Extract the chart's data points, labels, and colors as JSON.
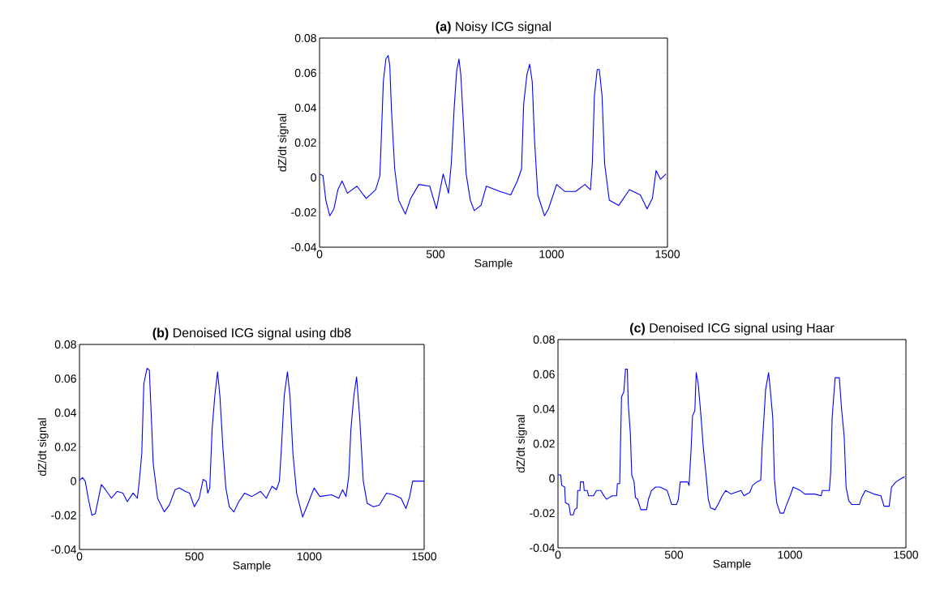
{
  "chart_data": [
    {
      "type": "line",
      "title": "**(a)** Noisy ICG signal",
      "xlabel": "Sample",
      "ylabel": "dZ/dt signal",
      "color": "#0000ff",
      "xlim": [
        0,
        1500
      ],
      "ylim": [
        -0.04,
        0.08
      ],
      "xticks": [
        0,
        500,
        1000,
        1500
      ],
      "yticks": [
        -0.04,
        -0.02,
        0,
        0.02,
        0.04,
        0.06,
        0.08
      ],
      "x": [
        0,
        15,
        27,
        44,
        62,
        79,
        97,
        120,
        161,
        201,
        242,
        260,
        265,
        275,
        286,
        296,
        303,
        310,
        324,
        341,
        370,
        393,
        428,
        475,
        504,
        533,
        556,
        568,
        580,
        591,
        601,
        609,
        620,
        632,
        650,
        667,
        696,
        719,
        778,
        824,
        853,
        871,
        880,
        894,
        906,
        917,
        927,
        941,
        970,
        987,
        1022,
        1057,
        1104,
        1144,
        1168,
        1176,
        1185,
        1197,
        1206,
        1218,
        1229,
        1249,
        1290,
        1336,
        1383,
        1412,
        1435,
        1451,
        1470,
        1494
      ],
      "values": [
        0.002,
        0.001,
        -0.013,
        -0.022,
        -0.018,
        -0.007,
        -0.002,
        -0.009,
        -0.005,
        -0.012,
        -0.007,
        0.001,
        0.018,
        0.055,
        0.068,
        0.07,
        0.064,
        0.039,
        0.005,
        -0.013,
        -0.021,
        -0.012,
        -0.004,
        -0.005,
        -0.018,
        0.002,
        -0.009,
        0.008,
        0.039,
        0.061,
        0.068,
        0.059,
        0.032,
        0.002,
        -0.013,
        -0.019,
        -0.016,
        -0.005,
        -0.008,
        -0.01,
        -0.002,
        0.005,
        0.042,
        0.059,
        0.065,
        0.055,
        0.021,
        -0.01,
        -0.022,
        -0.018,
        -0.004,
        -0.008,
        -0.008,
        -0.004,
        -0.007,
        0.008,
        0.047,
        0.062,
        0.062,
        0.047,
        0.008,
        -0.013,
        -0.016,
        -0.007,
        -0.01,
        -0.018,
        -0.012,
        0.004,
        -0.001,
        0.002
      ]
    },
    {
      "type": "line",
      "title": "**(b)** Denoised ICG signal using db8",
      "xlabel": "Sample",
      "ylabel": "dZ/dt signal",
      "color": "#0000ff",
      "xlim": [
        0,
        1500
      ],
      "ylim": [
        -0.04,
        0.08
      ],
      "xticks": [
        0,
        500,
        1000,
        1500
      ],
      "yticks": [
        -0.04,
        -0.02,
        0,
        0.02,
        0.04,
        0.06,
        0.08
      ],
      "x": [
        0,
        13,
        25,
        38,
        54,
        69,
        95,
        113,
        139,
        164,
        189,
        208,
        233,
        252,
        261,
        271,
        280,
        294,
        304,
        311,
        321,
        340,
        369,
        391,
        416,
        435,
        460,
        479,
        500,
        521,
        538,
        551,
        558,
        567,
        577,
        589,
        601,
        611,
        624,
        637,
        652,
        672,
        693,
        719,
        750,
        788,
        813,
        838,
        857,
        870,
        879,
        891,
        905,
        916,
        929,
        945,
        971,
        992,
        1021,
        1046,
        1097,
        1128,
        1145,
        1160,
        1172,
        1181,
        1194,
        1206,
        1219,
        1235,
        1252,
        1279,
        1305,
        1336,
        1368,
        1399,
        1421,
        1437,
        1450,
        1468,
        1500
      ],
      "values": [
        0.0005,
        0.002,
        0.0,
        -0.01,
        -0.02,
        -0.019,
        -0.002,
        -0.005,
        -0.01,
        -0.006,
        -0.007,
        -0.012,
        -0.007,
        -0.01,
        0.001,
        0.016,
        0.057,
        0.066,
        0.065,
        0.043,
        0.01,
        -0.01,
        -0.018,
        -0.014,
        -0.005,
        -0.004,
        -0.006,
        -0.007,
        -0.015,
        -0.01,
        0.001,
        0.0,
        -0.007,
        -0.004,
        0.03,
        0.05,
        0.064,
        0.05,
        0.02,
        -0.004,
        -0.015,
        -0.018,
        -0.012,
        -0.007,
        -0.009,
        -0.006,
        -0.01,
        -0.003,
        -0.005,
        0.0,
        0.02,
        0.05,
        0.064,
        0.05,
        0.016,
        -0.007,
        -0.021,
        -0.014,
        -0.004,
        -0.009,
        -0.008,
        -0.01,
        -0.005,
        -0.009,
        0.003,
        0.03,
        0.05,
        0.061,
        0.038,
        0.0,
        -0.013,
        -0.015,
        -0.014,
        -0.007,
        -0.008,
        -0.01,
        -0.016,
        -0.009,
        0.0,
        0.0,
        0.0
      ]
    },
    {
      "type": "line",
      "title": "**(c)** Denoised ICG signal using Haar",
      "xlabel": "Sample",
      "ylabel": "dZ/dt signal",
      "color": "#0000ff",
      "xlim": [
        0,
        1500
      ],
      "ylim": [
        -0.04,
        0.08
      ],
      "xticks": [
        0,
        500,
        1000,
        1500
      ],
      "yticks": [
        -0.04,
        -0.02,
        0,
        0.02,
        0.04,
        0.06,
        0.08
      ],
      "x": [
        0,
        12,
        16,
        29,
        32,
        47,
        54,
        66,
        72,
        82,
        85,
        95,
        97,
        110,
        113,
        126,
        132,
        153,
        166,
        185,
        193,
        209,
        222,
        234,
        253,
        256,
        266,
        269,
        274,
        284,
        291,
        299,
        303,
        312,
        318,
        328,
        334,
        343,
        357,
        382,
        390,
        403,
        421,
        440,
        471,
        490,
        511,
        519,
        527,
        559,
        565,
        574,
        580,
        590,
        596,
        605,
        617,
        627,
        640,
        648,
        658,
        677,
        690,
        708,
        723,
        746,
        789,
        802,
        827,
        839,
        858,
        874,
        880,
        889,
        895,
        908,
        914,
        926,
        933,
        943,
        958,
        973,
        983,
        1001,
        1014,
        1045,
        1064,
        1107,
        1135,
        1139,
        1170,
        1176,
        1182,
        1195,
        1213,
        1222,
        1234,
        1242,
        1254,
        1267,
        1300,
        1309,
        1325,
        1362,
        1392,
        1406,
        1428,
        1438,
        1457,
        1481,
        1494
      ],
      "values": [
        0.002,
        0.002,
        -0.004,
        -0.005,
        -0.014,
        -0.015,
        -0.021,
        -0.021,
        -0.018,
        -0.017,
        -0.007,
        -0.007,
        -0.002,
        -0.002,
        -0.007,
        -0.007,
        -0.01,
        -0.01,
        -0.007,
        -0.007,
        -0.009,
        -0.012,
        -0.011,
        -0.01,
        -0.01,
        -0.003,
        -0.003,
        0.016,
        0.047,
        0.05,
        0.063,
        0.063,
        0.043,
        0.026,
        0.002,
        -0.002,
        -0.011,
        -0.012,
        -0.018,
        -0.018,
        -0.012,
        -0.007,
        -0.005,
        -0.005,
        -0.007,
        -0.015,
        -0.015,
        -0.012,
        -0.002,
        -0.002,
        -0.004,
        0.017,
        0.036,
        0.039,
        0.061,
        0.054,
        0.035,
        0.017,
        0.0,
        -0.012,
        -0.017,
        -0.018,
        -0.015,
        -0.01,
        -0.007,
        -0.009,
        -0.007,
        -0.01,
        -0.008,
        -0.004,
        -0.002,
        -0.001,
        0.018,
        0.037,
        0.051,
        0.061,
        0.053,
        0.035,
        0.0,
        -0.014,
        -0.02,
        -0.02,
        -0.016,
        -0.01,
        -0.005,
        -0.007,
        -0.009,
        -0.009,
        -0.01,
        -0.007,
        -0.007,
        0.004,
        0.035,
        0.058,
        0.058,
        0.041,
        0.024,
        -0.005,
        -0.013,
        -0.015,
        -0.015,
        -0.011,
        -0.007,
        -0.009,
        -0.01,
        -0.016,
        -0.016,
        -0.005,
        -0.002,
        0.0,
        0.001
      ]
    }
  ]
}
